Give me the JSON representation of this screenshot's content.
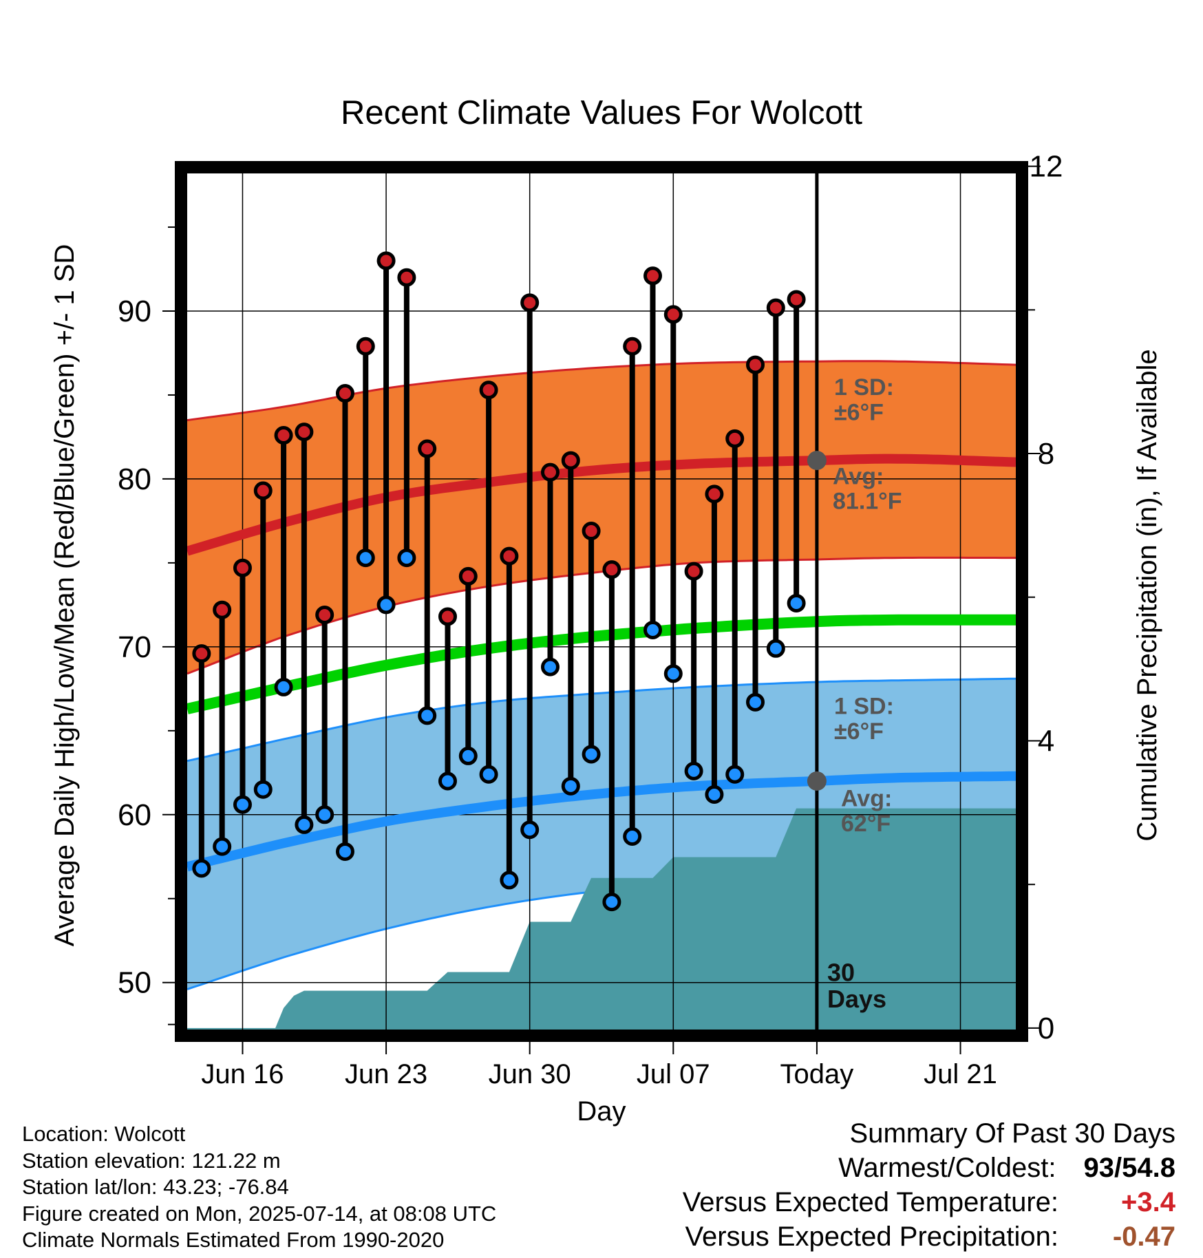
{
  "chart_data": {
    "type": "line",
    "title": "Recent Climate Values For Wolcott",
    "xlabel": "Day",
    "ylabel": "Average Daily High/Low/Mean (Red/Blue/Green) +/- 1 SD",
    "y2label": "Cumulative Precipitation (in), If Available",
    "ylim": [
      47.2,
      98.2
    ],
    "y2lim": [
      -0.02,
      11.9
    ],
    "yticks": [
      "50",
      "60",
      "70",
      "80",
      "90"
    ],
    "y2ticks": [
      "0",
      "4",
      "8",
      "12"
    ],
    "xticks": [
      {
        "day": 3,
        "label": "Jun 16"
      },
      {
        "day": 10,
        "label": "Jun 23"
      },
      {
        "day": 17,
        "label": "Jun 30"
      },
      {
        "day": 24,
        "label": "Jul 07"
      },
      {
        "day": 31,
        "label": "Today"
      },
      {
        "day": 38,
        "label": "Jul 21"
      }
    ],
    "x_range": [
      0.3,
      40.7
    ],
    "today_day": 31,
    "grid": true,
    "observed_days": [
      1,
      30
    ],
    "observed_high": [
      69.6,
      72.2,
      74.7,
      79.3,
      82.6,
      82.8,
      71.9,
      85.1,
      87.9,
      93.0,
      92.0,
      81.8,
      71.8,
      74.2,
      85.3,
      75.4,
      90.5,
      80.4,
      81.1,
      76.9,
      74.6,
      87.9,
      92.1,
      89.8,
      74.5,
      79.1,
      82.4,
      86.8,
      90.2,
      90.7
    ],
    "observed_low": [
      56.8,
      58.1,
      60.6,
      61.5,
      67.6,
      59.4,
      60.0,
      57.8,
      75.3,
      72.5,
      75.3,
      65.9,
      62.0,
      63.5,
      62.4,
      56.1,
      59.1,
      68.8,
      61.7,
      63.6,
      54.8,
      58.7,
      71.0,
      68.4,
      62.6,
      61.2,
      62.4,
      66.7,
      69.9,
      72.6
    ],
    "normal_high": {
      "days": [
        0.3,
        5,
        10,
        15,
        20,
        25,
        31,
        35,
        40.7
      ],
      "values": [
        75.7,
        77.4,
        78.9,
        79.8,
        80.5,
        80.9,
        81.1,
        81.2,
        81.0
      ]
    },
    "normal_high_sd_upper": {
      "days": [
        0.3,
        5,
        10,
        15,
        20,
        25,
        31,
        35,
        40.7
      ],
      "values": [
        83.5,
        84.3,
        85.4,
        86.1,
        86.6,
        86.9,
        87.0,
        87.0,
        86.8
      ]
    },
    "normal_high_sd_lower": {
      "days": [
        0.3,
        5,
        10,
        15,
        20,
        25,
        31,
        35,
        40.7
      ],
      "values": [
        68.4,
        70.6,
        72.4,
        73.6,
        74.4,
        75.0,
        75.2,
        75.3,
        75.3
      ]
    },
    "normal_mean": {
      "days": [
        0.3,
        5,
        10,
        15,
        20,
        25,
        31,
        35,
        40.7
      ],
      "values": [
        66.3,
        67.6,
        68.9,
        69.9,
        70.6,
        71.1,
        71.5,
        71.6,
        71.6
      ]
    },
    "normal_low": {
      "days": [
        0.3,
        5,
        10,
        15,
        20,
        25,
        31,
        35,
        40.7
      ],
      "values": [
        56.9,
        58.3,
        59.6,
        60.5,
        61.2,
        61.7,
        62.0,
        62.2,
        62.3
      ]
    },
    "normal_low_sd_upper": {
      "days": [
        0.3,
        5,
        10,
        15,
        20,
        25,
        31,
        35,
        40.7
      ],
      "values": [
        63.2,
        64.5,
        65.8,
        66.7,
        67.2,
        67.6,
        67.9,
        68.0,
        68.1
      ]
    },
    "normal_low_sd_lower": {
      "days": [
        0.3,
        5,
        10,
        15,
        20,
        25,
        31,
        35,
        40.7
      ],
      "values": [
        49.6,
        51.5,
        53.2,
        54.5,
        55.4,
        55.9,
        56.2,
        56.4,
        56.5
      ]
    },
    "cumulative_precip": {
      "days": [
        0.3,
        4.6,
        5.0,
        5.5,
        6.0,
        7.0,
        8.0,
        9.0,
        10.0,
        11.0,
        12.0,
        13.0,
        14.0,
        15.0,
        16.0,
        17.0,
        18.0,
        19.0,
        20.0,
        21.0,
        22.0,
        23.0,
        24.0,
        25.0,
        26.0,
        27.0,
        28.0,
        29.0,
        30.0,
        31.0,
        40.7
      ],
      "values": [
        0,
        0,
        0.28,
        0.45,
        0.52,
        0.52,
        0.52,
        0.52,
        0.52,
        0.52,
        0.52,
        0.78,
        0.78,
        0.78,
        0.78,
        1.48,
        1.48,
        1.48,
        2.09,
        2.09,
        2.09,
        2.09,
        2.38,
        2.38,
        2.38,
        2.38,
        2.38,
        2.38,
        3.06,
        3.06,
        3.06
      ]
    },
    "annotations": {
      "high_sd": [
        "1 SD:",
        "±6°F"
      ],
      "high_avg": [
        "Avg:",
        "81.1°F"
      ],
      "low_sd": [
        "1 SD:",
        "±6°F"
      ],
      "low_avg": [
        "Avg:",
        "62°F"
      ],
      "precip_days": [
        "30",
        "Days"
      ]
    },
    "colors": {
      "high_band": "#f27b30",
      "high_line": "#d12127",
      "low_band": "#80bfe6",
      "low_line": "#1e8ffa",
      "mean_line": "#00d200",
      "precip": "#4a9aa3",
      "high_dot": "#cc1f26",
      "low_dot": "#1e90ff",
      "annotation_text": "#555555",
      "today_dot": "#555555"
    }
  },
  "footer": {
    "lines": [
      "Location: Wolcott",
      "Station elevation: 121.22 m",
      "Station lat/lon: 43.23; -76.84",
      "Figure created on Mon, 2025-07-14, at 08:08 UTC",
      "Climate Normals Estimated From 1990-2020"
    ]
  },
  "summary": {
    "title": "Summary Of Past 30 Days",
    "rows": [
      {
        "label": "Warmest/Coldest:",
        "value": "93/54.8",
        "color": "#000000"
      },
      {
        "label": "Versus Expected Temperature:",
        "value": "+3.4",
        "color": "#d12127"
      },
      {
        "label": "Versus Expected Precipitation:",
        "value": "-0.47",
        "color": "#a0522d"
      }
    ]
  }
}
